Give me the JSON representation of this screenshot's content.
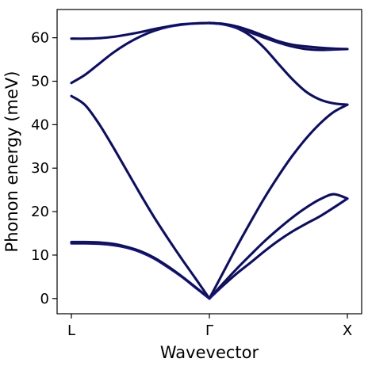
{
  "chart_data": {
    "type": "line",
    "title": "",
    "xlabel": "Wavevector",
    "ylabel": "Phonon energy (meV)",
    "xlim": [
      0,
      2
    ],
    "ylim": [
      -3.5,
      66.5
    ],
    "x_tick_labels": [
      "L",
      "Γ",
      "X"
    ],
    "x_tick_positions": [
      0,
      1,
      2
    ],
    "y_ticks": [
      0,
      10,
      20,
      30,
      40,
      50,
      60
    ],
    "grid": false,
    "legend": "none",
    "colors": {
      "reference": "#1f1fd6",
      "calculated": "#111133"
    },
    "series": [
      {
        "x": [
          0,
          0.1,
          0.2,
          0.3,
          0.4,
          0.5,
          0.6,
          0.7,
          0.8,
          0.9,
          1.0
        ],
        "values": [
          12.7,
          12.7,
          12.6,
          12.3,
          11.7,
          10.7,
          9.2,
          7.2,
          5.0,
          2.5,
          0
        ]
      },
      {
        "x": [
          0,
          0.1,
          0.2,
          0.3,
          0.4,
          0.5,
          0.6,
          0.7,
          0.8,
          0.9,
          1.0
        ],
        "values": [
          13.0,
          13.0,
          12.9,
          12.6,
          11.9,
          10.9,
          9.4,
          7.4,
          5.1,
          2.6,
          0
        ]
      },
      {
        "x": [
          0,
          0.1,
          0.2,
          0.3,
          0.4,
          0.5,
          0.6,
          0.7,
          0.8,
          0.9,
          1.0
        ],
        "values": [
          46.6,
          44.5,
          40.2,
          35.0,
          29.5,
          24.0,
          18.7,
          13.8,
          9.1,
          4.6,
          0
        ]
      },
      {
        "x": [
          0,
          0.1,
          0.2,
          0.3,
          0.4,
          0.5,
          0.6,
          0.7,
          0.8,
          0.9,
          1.0
        ],
        "values": [
          49.6,
          51.5,
          54.0,
          56.5,
          58.6,
          60.3,
          61.6,
          62.5,
          63.0,
          63.3,
          63.4
        ]
      },
      {
        "x": [
          0,
          0.1,
          0.2,
          0.3,
          0.4,
          0.5,
          0.6,
          0.7,
          0.8,
          0.9,
          1.0
        ],
        "values": [
          59.8,
          59.8,
          59.9,
          60.2,
          60.7,
          61.3,
          62.0,
          62.6,
          63.1,
          63.3,
          63.4
        ]
      },
      {
        "x": [
          1.0,
          1.1,
          1.2,
          1.3,
          1.4,
          1.5,
          1.6,
          1.7,
          1.8,
          1.9,
          2.0
        ],
        "values": [
          0,
          3.0,
          5.8,
          8.3,
          10.9,
          13.3,
          15.4,
          17.2,
          18.9,
          20.9,
          23.0
        ]
      },
      {
        "x": [
          1.0,
          1.1,
          1.2,
          1.3,
          1.4,
          1.5,
          1.6,
          1.7,
          1.8,
          1.9,
          2.0
        ],
        "values": [
          0,
          3.5,
          6.9,
          10.1,
          13.2,
          16.0,
          18.6,
          20.9,
          22.8,
          24.0,
          23.0
        ]
      },
      {
        "x": [
          1.0,
          1.1,
          1.2,
          1.3,
          1.4,
          1.5,
          1.6,
          1.7,
          1.8,
          1.9,
          2.0
        ],
        "values": [
          0,
          6.0,
          12.0,
          17.7,
          23.2,
          28.2,
          32.8,
          36.8,
          40.2,
          42.9,
          44.6
        ]
      },
      {
        "x": [
          1.0,
          1.1,
          1.2,
          1.3,
          1.4,
          1.5,
          1.6,
          1.7,
          1.8,
          1.9,
          2.0
        ],
        "values": [
          63.4,
          63.1,
          62.2,
          60.4,
          57.6,
          54.0,
          50.5,
          47.6,
          45.8,
          44.9,
          44.6
        ]
      },
      {
        "x": [
          1.0,
          1.1,
          1.2,
          1.3,
          1.4,
          1.5,
          1.6,
          1.7,
          1.8,
          1.9,
          2.0
        ],
        "values": [
          63.4,
          63.1,
          62.3,
          61.2,
          60.0,
          58.9,
          58.0,
          57.4,
          57.2,
          57.3,
          57.4
        ]
      },
      {
        "x": [
          1.0,
          1.1,
          1.2,
          1.3,
          1.4,
          1.5,
          1.6,
          1.7,
          1.8,
          1.9,
          2.0
        ],
        "values": [
          63.4,
          63.2,
          62.6,
          61.6,
          60.4,
          59.2,
          58.4,
          58.0,
          57.7,
          57.5,
          57.4
        ]
      }
    ]
  }
}
